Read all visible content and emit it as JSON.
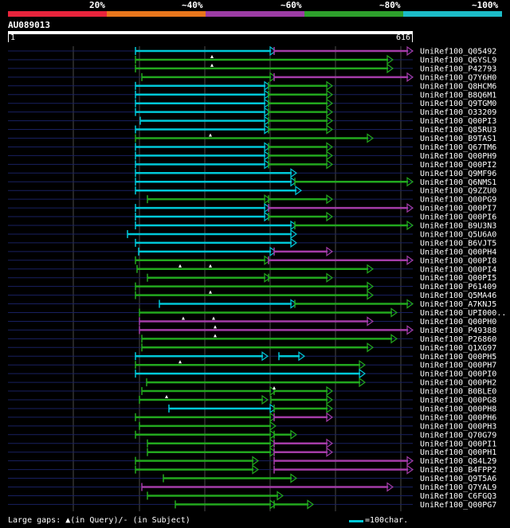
{
  "scale": {
    "labels": [
      "20%",
      "~40%",
      "~60%",
      "~80%",
      "~100%"
    ],
    "colors": [
      "#e8243c",
      "#e8761c",
      "#9c3ca4",
      "#2ea02c",
      "#1cbcc8"
    ]
  },
  "query": {
    "id": "AU089013",
    "start": "1",
    "end": "616"
  },
  "footer": {
    "gaps_text": "Large gaps: ▲(in Query)/- (in Subject)",
    "legend_text": "=100char."
  },
  "colors": {
    "cyan": "#00c8d8",
    "green": "#22a81e",
    "purple": "#a43ca8",
    "navy": "#182060",
    "grid": "#4a4a4a"
  },
  "hits": [
    {
      "label": "UniRef100_Q05492"
    },
    {
      "label": "UniRef100_Q6YSL9"
    },
    {
      "label": "UniRef100_P42793"
    },
    {
      "label": "UniRef100_Q7Y6H0"
    },
    {
      "label": "UniRef100_Q8HCM6"
    },
    {
      "label": "UniRef100_B8Q6M1"
    },
    {
      "label": "UniRef100_Q9TGM0"
    },
    {
      "label": "UniRef100_O33209"
    },
    {
      "label": "UniRef100_Q00PI3"
    },
    {
      "label": "UniRef100_Q85RU3"
    },
    {
      "label": "UniRef100_B9TAS1"
    },
    {
      "label": "UniRef100_Q67TM6"
    },
    {
      "label": "UniRef100_Q00PH9"
    },
    {
      "label": "UniRef100_Q00PI2"
    },
    {
      "label": "UniRef100_Q9MF96"
    },
    {
      "label": "UniRef100_Q6NMS1"
    },
    {
      "label": "UniRef100_Q9ZZU0"
    },
    {
      "label": "UniRef100_Q00PG9"
    },
    {
      "label": "UniRef100_Q00PI7"
    },
    {
      "label": "UniRef100_Q00PI6"
    },
    {
      "label": "UniRef100_B9U3N3"
    },
    {
      "label": "UniRef100_Q5U6A0"
    },
    {
      "label": "UniRef100_B6VJT5"
    },
    {
      "label": "UniRef100_Q00PH4"
    },
    {
      "label": "UniRef100_Q00PI8"
    },
    {
      "label": "UniRef100_Q00PI4"
    },
    {
      "label": "UniRef100_Q00PI5"
    },
    {
      "label": "UniRef100_P61409"
    },
    {
      "label": "UniRef100_Q5MA46"
    },
    {
      "label": "UniRef100_A7KNJ5"
    },
    {
      "label": "UniRef100_UPI000.."
    },
    {
      "label": "UniRef100_Q00PH0"
    },
    {
      "label": "UniRef100_P49388"
    },
    {
      "label": "UniRef100_P26860"
    },
    {
      "label": "UniRef100_Q1XG97"
    },
    {
      "label": "UniRef100_Q00PH5"
    },
    {
      "label": "UniRef100_Q00PH7"
    },
    {
      "label": "UniRef100_Q00PI0"
    },
    {
      "label": "UniRef100_Q00PH2"
    },
    {
      "label": "UniRef100_B0BLE0"
    },
    {
      "label": "UniRef100_Q00PG8"
    },
    {
      "label": "UniRef100_Q00PH8"
    },
    {
      "label": "UniRef100_Q00PH6"
    },
    {
      "label": "UniRef100_Q00PH3"
    },
    {
      "label": "UniRef100_Q70G79"
    },
    {
      "label": "UniRef100_Q00PI1"
    },
    {
      "label": "UniRef100_Q00PH1"
    },
    {
      "label": "UniRef100_Q84L29"
    },
    {
      "label": "UniRef100_B4FPP2"
    },
    {
      "label": "UniRef100_Q9T5A6"
    },
    {
      "label": "UniRef100_Q7YAL9"
    },
    {
      "label": "UniRef100_C6FGQ3"
    },
    {
      "label": "UniRef100_Q00PG7"
    }
  ]
}
